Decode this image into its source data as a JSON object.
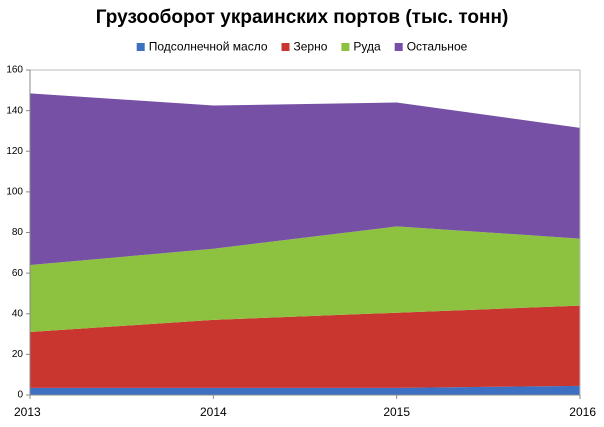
{
  "chart_data": {
    "type": "stacked-area",
    "title": "Грузооборот украинских портов (тыс. тонн)",
    "x": [
      2013,
      2014,
      2015,
      2016
    ],
    "xlim": [
      2013,
      2016
    ],
    "xticks": [
      2013,
      2014,
      2015,
      2016
    ],
    "ylim": [
      0,
      160
    ],
    "yticks": [
      0,
      20,
      40,
      60,
      80,
      100,
      120,
      140,
      160
    ],
    "legend": "top",
    "series": [
      {
        "name": "Подсолнечной масло",
        "color": "#3d6fc2",
        "values": [
          3.5,
          3.5,
          3.5,
          4.5
        ]
      },
      {
        "name": "Зерно",
        "color": "#c9362f",
        "values": [
          27.5,
          33.5,
          37,
          39.5
        ]
      },
      {
        "name": "Руда",
        "color": "#8dc241",
        "values": [
          33,
          35,
          42.5,
          33
        ]
      },
      {
        "name": "Остальное",
        "color": "#7550a5",
        "values": [
          84.5,
          70.5,
          61,
          54.5
        ]
      }
    ]
  }
}
